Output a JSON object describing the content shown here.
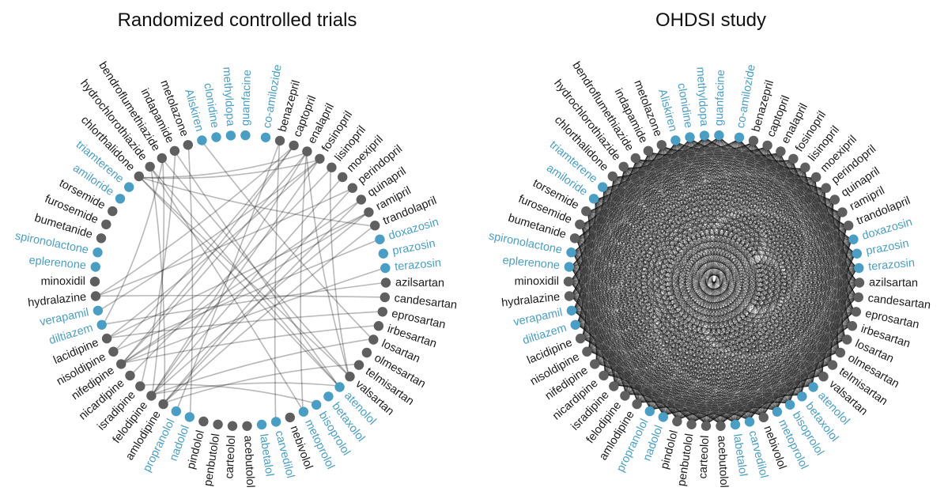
{
  "colors": {
    "highlight": "#4a9ec4",
    "default_node": "#5f5f5f",
    "default_label": "#1a1a1a",
    "edge": "#000000"
  },
  "drugs": [
    {
      "name": "co-amilozide",
      "highlight": true
    },
    {
      "name": "benazepril",
      "highlight": false
    },
    {
      "name": "captopril",
      "highlight": false
    },
    {
      "name": "enalapril",
      "highlight": false
    },
    {
      "name": "fosinopril",
      "highlight": false
    },
    {
      "name": "lisinopril",
      "highlight": false
    },
    {
      "name": "moexipril",
      "highlight": false
    },
    {
      "name": "perindopril",
      "highlight": false
    },
    {
      "name": "quinapril",
      "highlight": false
    },
    {
      "name": "ramipril",
      "highlight": false
    },
    {
      "name": "trandolapril",
      "highlight": false
    },
    {
      "name": "doxazosin",
      "highlight": true
    },
    {
      "name": "prazosin",
      "highlight": true
    },
    {
      "name": "terazosin",
      "highlight": true
    },
    {
      "name": "azilsartan",
      "highlight": false
    },
    {
      "name": "candesartan",
      "highlight": false
    },
    {
      "name": "eprosartan",
      "highlight": false
    },
    {
      "name": "irbesartan",
      "highlight": false
    },
    {
      "name": "losartan",
      "highlight": false
    },
    {
      "name": "olmesartan",
      "highlight": false
    },
    {
      "name": "telmisartan",
      "highlight": false
    },
    {
      "name": "valsartan",
      "highlight": false
    },
    {
      "name": "atenolol",
      "highlight": true
    },
    {
      "name": "betaxolol",
      "highlight": true
    },
    {
      "name": "bisoprolol",
      "highlight": true
    },
    {
      "name": "metoprolol",
      "highlight": true
    },
    {
      "name": "nebivolol",
      "highlight": false
    },
    {
      "name": "carvedilol",
      "highlight": true
    },
    {
      "name": "labetalol",
      "highlight": true
    },
    {
      "name": "acebutolol",
      "highlight": false
    },
    {
      "name": "carteolol",
      "highlight": false
    },
    {
      "name": "penbutolol",
      "highlight": false
    },
    {
      "name": "pindolol",
      "highlight": false
    },
    {
      "name": "nadolol",
      "highlight": true
    },
    {
      "name": "propranolol",
      "highlight": true
    },
    {
      "name": "amlodipine",
      "highlight": false
    },
    {
      "name": "felodipine",
      "highlight": false
    },
    {
      "name": "isradipine",
      "highlight": false
    },
    {
      "name": "nicardipine",
      "highlight": false
    },
    {
      "name": "nifedipine",
      "highlight": false
    },
    {
      "name": "nisoldipine",
      "highlight": false
    },
    {
      "name": "lacidipine",
      "highlight": false
    },
    {
      "name": "diltiazem",
      "highlight": true
    },
    {
      "name": "verapamil",
      "highlight": true
    },
    {
      "name": "hydralazine",
      "highlight": false
    },
    {
      "name": "minoxidil",
      "highlight": false
    },
    {
      "name": "eplerenone",
      "highlight": true
    },
    {
      "name": "spironolactone",
      "highlight": true
    },
    {
      "name": "bumetanide",
      "highlight": false
    },
    {
      "name": "furosemide",
      "highlight": false
    },
    {
      "name": "torsemide",
      "highlight": false
    },
    {
      "name": "amiloride",
      "highlight": true
    },
    {
      "name": "triamterene",
      "highlight": true
    },
    {
      "name": "chlorthalidone",
      "highlight": false
    },
    {
      "name": "hydrochlorothiazide",
      "highlight": false
    },
    {
      "name": "bendroflumethiazide",
      "highlight": false
    },
    {
      "name": "indapamide",
      "highlight": false
    },
    {
      "name": "metolazone",
      "highlight": false
    },
    {
      "name": "Aliskiren",
      "highlight": true
    },
    {
      "name": "clonidine",
      "highlight": true
    },
    {
      "name": "methyldopa",
      "highlight": true
    },
    {
      "name": "guanfacine",
      "highlight": true
    }
  ],
  "left_panel": {
    "title": "Randomized controlled trials",
    "edge_density": "sparse",
    "edges": [
      [
        3,
        39
      ],
      [
        3,
        36
      ],
      [
        3,
        53
      ],
      [
        2,
        39
      ],
      [
        2,
        44
      ],
      [
        4,
        36
      ],
      [
        4,
        53
      ],
      [
        5,
        38
      ],
      [
        1,
        27
      ],
      [
        9,
        41
      ],
      [
        9,
        36
      ],
      [
        10,
        35
      ],
      [
        10,
        53
      ],
      [
        8,
        39
      ],
      [
        7,
        44
      ],
      [
        5,
        21
      ],
      [
        3,
        25
      ],
      [
        53,
        22
      ],
      [
        53,
        21
      ],
      [
        54,
        25
      ],
      [
        54,
        22
      ],
      [
        54,
        35
      ],
      [
        55,
        21
      ],
      [
        56,
        37
      ],
      [
        56,
        22
      ],
      [
        36,
        22
      ],
      [
        36,
        18
      ],
      [
        39,
        13
      ],
      [
        39,
        17
      ],
      [
        39,
        9
      ],
      [
        41,
        16
      ],
      [
        42,
        14
      ],
      [
        42,
        55
      ],
      [
        44,
        15
      ],
      [
        43,
        4
      ],
      [
        35,
        20
      ],
      [
        35,
        7
      ],
      [
        37,
        24
      ],
      [
        40,
        11
      ],
      [
        36,
        6
      ],
      [
        2,
        40
      ],
      [
        4,
        41
      ],
      [
        1,
        34
      ],
      [
        3,
        21
      ],
      [
        8,
        35
      ],
      [
        57,
        33
      ],
      [
        58,
        18
      ],
      [
        55,
        36
      ]
    ]
  },
  "right_panel": {
    "title": "OHDSI study",
    "edge_density": "dense"
  }
}
